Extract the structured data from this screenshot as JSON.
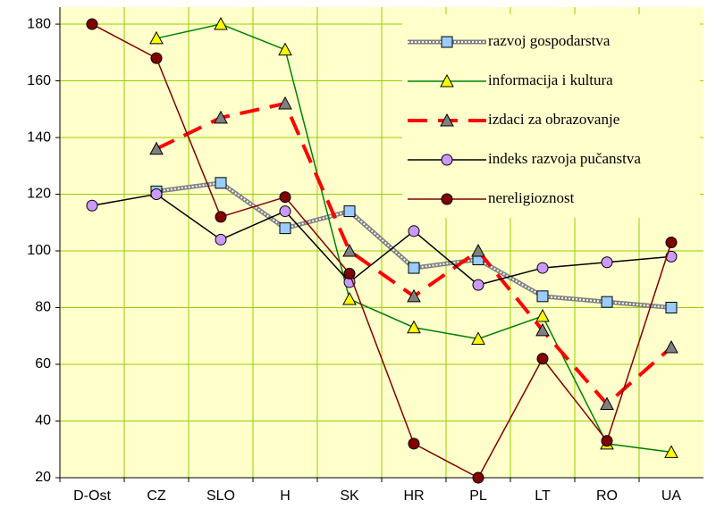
{
  "chart_data": {
    "type": "line",
    "categories": [
      "D-Ost",
      "CZ",
      "SLO",
      "H",
      "SK",
      "HR",
      "PL",
      "LT",
      "RO",
      "UA"
    ],
    "series": [
      {
        "name": "razvoj gospodarstva",
        "color": "#808080",
        "line_style": "hatched",
        "marker": "square",
        "marker_color": "#99ccff",
        "values": [
          null,
          121,
          124,
          108,
          114,
          94,
          97,
          84,
          82,
          80
        ]
      },
      {
        "name": "informacija i kultura",
        "color": "#008000",
        "line_style": "solid",
        "marker": "triangle",
        "marker_color": "#ffff00",
        "values": [
          null,
          175,
          180,
          171,
          83,
          73,
          69,
          77,
          32,
          29
        ]
      },
      {
        "name": "izdaci za obrazovanje",
        "color": "#ff0000",
        "line_style": "dashed",
        "marker": "triangle",
        "marker_color": "#808080",
        "values": [
          null,
          136,
          147,
          152,
          100,
          84,
          100,
          72,
          46,
          66
        ]
      },
      {
        "name": "indeks razvoja pučanstva",
        "color": "#000000",
        "line_style": "solid",
        "marker": "circle",
        "marker_color": "#cc99ff",
        "values": [
          116,
          120,
          104,
          114,
          89,
          107,
          88,
          94,
          96,
          98
        ]
      },
      {
        "name": "nereligioznost",
        "color": "#800000",
        "line_style": "solid",
        "marker": "circle",
        "marker_color": "#800000",
        "values": [
          180,
          168,
          112,
          119,
          92,
          32,
          20,
          62,
          33,
          103
        ]
      }
    ],
    "ylim": [
      20,
      186
    ],
    "yticks": [
      20,
      40,
      60,
      80,
      100,
      120,
      140,
      160,
      180
    ],
    "grid": true,
    "legend": "top-right"
  }
}
